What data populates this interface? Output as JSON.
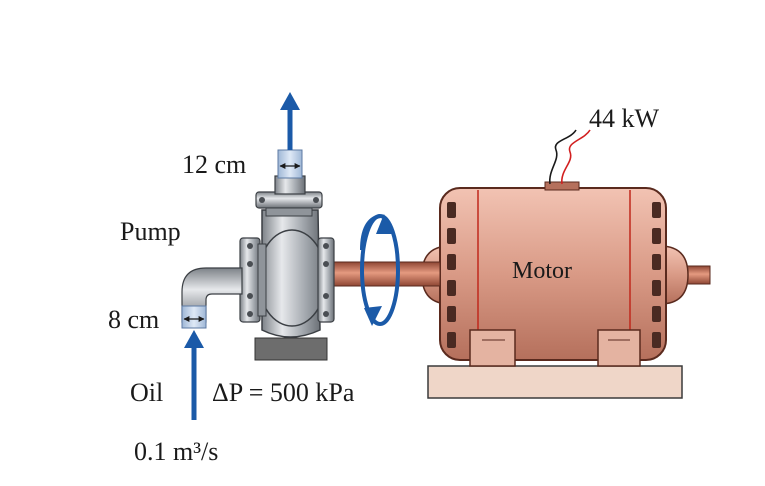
{
  "labels": {
    "power": "44 kW",
    "outlet_diameter": "12 cm",
    "pump": "Pump",
    "motor": "Motor",
    "inlet_diameter": "8 cm",
    "fluid": "Oil",
    "pressure_rise": "ΔP = 500 kPa",
    "flow_rate": "0.1 m³/s"
  },
  "colors": {
    "arrow": "#1b5aa8",
    "motor_body": "#d99a86",
    "motor_dark": "#b5705c",
    "shaft": "#b9654c",
    "pump_metal": "#a9adb3",
    "base_plate": "#efd6c8",
    "pump_base": "#6d6d6d",
    "wire_red": "#d22020",
    "pipe_blue": "#b9cde6"
  }
}
